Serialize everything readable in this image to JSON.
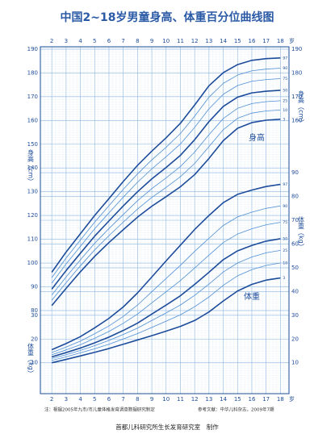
{
  "title": "中国2~18岁男童身高、体重百分位曲线图",
  "x_unit": "岁",
  "footer": {
    "note": "注：根据2005年九市/市儿童体格发育调查数据研究制定",
    "reference": "参考文献：中华儿科杂志，2009年7期",
    "credit": "首都儿科研究所生长发育研究室　制作"
  },
  "chart_data": [
    {
      "type": "line",
      "y_label": "身高（cm）",
      "label": "身高",
      "x": [
        2,
        3,
        4,
        5,
        6,
        7,
        8,
        9,
        10,
        11,
        12,
        13,
        14,
        15,
        16,
        17,
        18
      ],
      "xlim": [
        1.2,
        18.6
      ],
      "xticks": [
        2,
        3,
        4,
        5,
        6,
        7,
        8,
        9,
        10,
        11,
        12,
        13,
        14,
        15,
        16,
        17,
        18
      ],
      "ylim": [
        45,
        191
      ],
      "yticks": [
        80,
        90,
        100,
        110,
        120,
        130,
        140,
        150,
        160,
        170,
        180,
        190
      ],
      "grid": true,
      "series": [
        {
          "name": "97",
          "color": "#1d4c9a",
          "values": [
            96.1,
            104.6,
            112.3,
            120,
            127.1,
            134.3,
            141.1,
            147.1,
            152.7,
            158.8,
            166.5,
            174.6,
            180.1,
            183.5,
            185.3,
            186,
            186.3
          ]
        },
        {
          "name": "90",
          "color": "#4f8fd4",
          "values": [
            93.8,
            102.1,
            109.7,
            117.2,
            124.1,
            131.0,
            137.5,
            143.4,
            148.7,
            154.5,
            161.8,
            169.8,
            175.6,
            179.1,
            180.9,
            181.6,
            182.0
          ]
        },
        {
          "name": "75",
          "color": "#4f8fd4",
          "values": [
            91.5,
            99.6,
            107.0,
            114.4,
            121.1,
            127.7,
            134.0,
            139.6,
            144.7,
            150.1,
            157.1,
            164.9,
            171.0,
            174.7,
            176.5,
            177.2,
            177.6
          ]
        },
        {
          "name": "50",
          "color": "#1d4c9a",
          "values": [
            89,
            96.8,
            104.1,
            111.3,
            117.7,
            124,
            130,
            135.4,
            140.2,
            145.3,
            151.9,
            159.5,
            165.9,
            169.8,
            171.6,
            172.3,
            172.7
          ]
        },
        {
          "name": "25",
          "color": "#4f8fd4",
          "values": [
            86.5,
            94.1,
            101.3,
            108.3,
            114.5,
            120.4,
            126.2,
            131.3,
            135.8,
            140.6,
            146.7,
            154.0,
            160.8,
            165.1,
            167.1,
            167.9,
            168.3
          ]
        },
        {
          "name": "10",
          "color": "#4f8fd4",
          "values": [
            84.3,
            91.7,
            98.8,
            105.5,
            111.5,
            117.2,
            122.7,
            127.6,
            131.8,
            136.3,
            141.9,
            149.0,
            156.1,
            160.9,
            163.1,
            164.0,
            164.4
          ]
        },
        {
          "name": "3",
          "color": "#1d4c9a",
          "values": [
            82.1,
            89.3,
            96.3,
            102.8,
            108.6,
            114,
            119.3,
            123.9,
            127.9,
            132.1,
            137.2,
            144,
            151.5,
            156.7,
            159.1,
            160.1,
            160.5
          ]
        }
      ]
    },
    {
      "type": "line",
      "y_label": "体重（kg）",
      "label": "体重",
      "x": [
        2,
        3,
        4,
        5,
        6,
        7,
        8,
        9,
        10,
        11,
        12,
        13,
        14,
        15,
        16,
        17,
        18
      ],
      "xlim": [
        1.2,
        18.6
      ],
      "ylim": [
        -3,
        143
      ],
      "yticks": [
        10,
        20,
        30,
        40,
        50,
        60,
        70,
        80,
        90
      ],
      "grid": true,
      "series": [
        {
          "name": "97",
          "color": "#1d4c9a",
          "values": [
            15.5,
            18.1,
            21,
            24.7,
            28.7,
            33.5,
            39.4,
            46.1,
            52.9,
            59.5,
            66.1,
            72,
            77.4,
            80.9,
            82.7,
            84.2,
            85.1
          ]
        },
        {
          "name": "90",
          "color": "#4f8fd4",
          "values": [
            14.3,
            16.6,
            19.1,
            22.2,
            25.5,
            29.5,
            34.3,
            39.9,
            45.5,
            51.0,
            56.9,
            62.4,
            67.8,
            71.4,
            73.4,
            75.0,
            76.0
          ]
        },
        {
          "name": "75",
          "color": "#4f8fd4",
          "values": [
            13.4,
            15.4,
            17.6,
            20.3,
            23.2,
            26.6,
            30.5,
            35.2,
            39.9,
            44.6,
            49.9,
            55.3,
            60.6,
            64.2,
            66.4,
            68.1,
            69.1
          ]
        },
        {
          "name": "50",
          "color": "#1d4c9a",
          "values": [
            12.5,
            14.3,
            16.2,
            18.4,
            20.8,
            23.6,
            26.7,
            30.5,
            34.3,
            38.2,
            43,
            48.1,
            53.4,
            57.1,
            59.4,
            61.2,
            62.2
          ]
        },
        {
          "name": "25",
          "color": "#4f8fd4",
          "values": [
            11.8,
            13.4,
            15.2,
            17.2,
            19.4,
            21.9,
            24.6,
            27.8,
            31.0,
            34.3,
            38.4,
            43.1,
            48.2,
            52.0,
            54.5,
            56.3,
            57.3
          ]
        },
        {
          "name": "10",
          "color": "#4f8fd4",
          "values": [
            11.0,
            12.5,
            14.2,
            15.9,
            17.8,
            20.0,
            22.3,
            24.9,
            27.5,
            30.2,
            33.6,
            37.7,
            42.6,
            46.6,
            49.2,
            51.0,
            52.0
          ]
        },
        {
          "name": "3",
          "color": "#1d4c9a",
          "values": [
            10,
            11.4,
            12.9,
            14.4,
            16,
            17.8,
            19.6,
            21.4,
            23.3,
            25.3,
            27.8,
            31.4,
            36,
            40.2,
            43,
            44.8,
            45.7
          ]
        }
      ]
    }
  ]
}
